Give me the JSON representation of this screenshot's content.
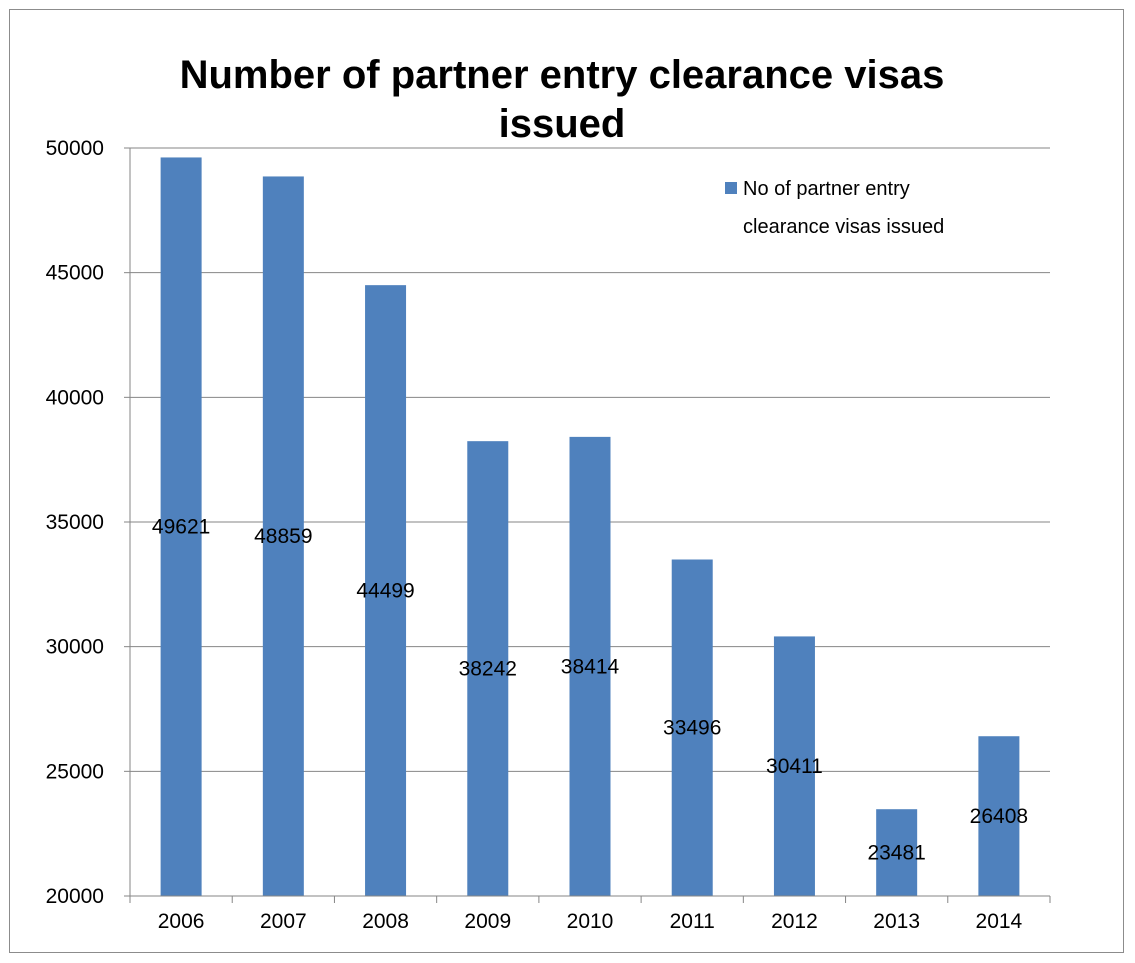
{
  "chart_data": {
    "type": "bar",
    "title_lines": [
      "Number of partner entry clearance visas",
      "issued"
    ],
    "categories": [
      "2006",
      "2007",
      "2008",
      "2009",
      "2010",
      "2011",
      "2012",
      "2013",
      "2014"
    ],
    "series": [
      {
        "name": "No of partner entry clearance visas issued",
        "name_lines": [
          "No of partner entry",
          "clearance visas issued"
        ],
        "values": [
          49621,
          48859,
          44499,
          38242,
          38414,
          33496,
          30411,
          23481,
          26408
        ],
        "color": "#4f81bd"
      }
    ],
    "ylim": [
      20000,
      50000
    ],
    "yticks": [
      "20000",
      "25000",
      "30000",
      "35000",
      "40000",
      "45000",
      "50000"
    ],
    "xlabel": "",
    "ylabel": "",
    "grid": true,
    "legend_position": "top-right",
    "data_labels": [
      "49621",
      "48859",
      "44499",
      "38242",
      "38414",
      "33496",
      "30411",
      "23481",
      "26408"
    ]
  }
}
